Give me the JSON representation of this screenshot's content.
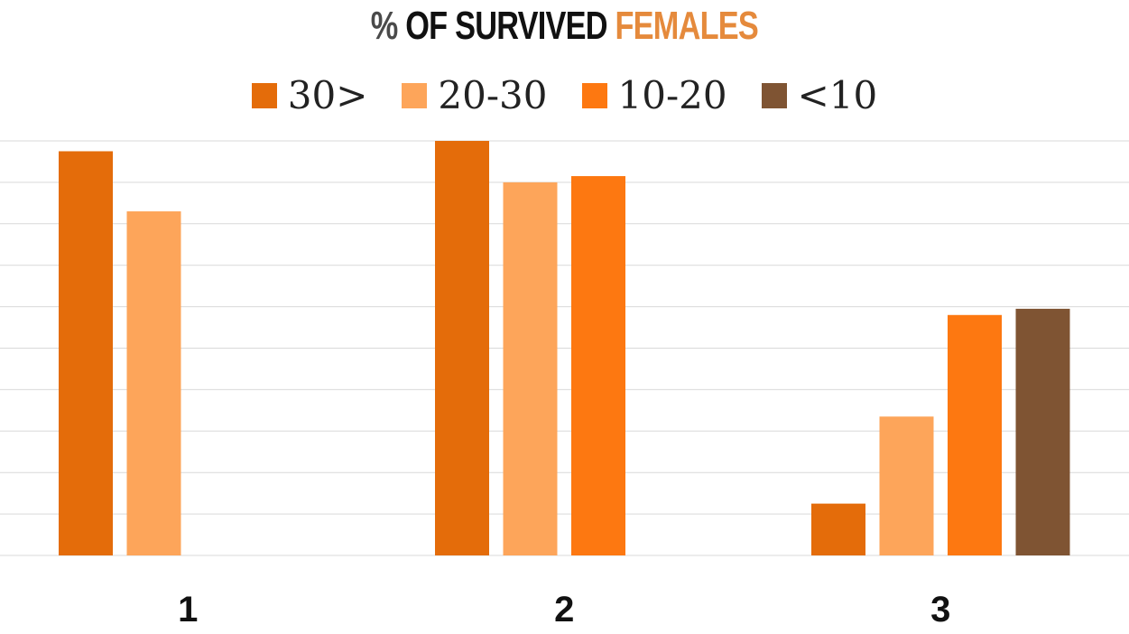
{
  "title": {
    "prefix": "%",
    "main": "OF SURVIVED",
    "accent": "FEMALES"
  },
  "legend": [
    {
      "label": "30>",
      "color": "#e46c0a"
    },
    {
      "label": "20-30",
      "color": "#fda55a"
    },
    {
      "label": "10-20",
      "color": "#fd7811"
    },
    {
      "label": "<10",
      "color": "#7f5433"
    }
  ],
  "chart_data": {
    "type": "bar",
    "title": "% OF SURVIVED FEMALES",
    "categories": [
      "1",
      "2",
      "3"
    ],
    "series": [
      {
        "name": "30>",
        "color": "#e46c0a",
        "values": [
          97.5,
          100,
          12.5
        ]
      },
      {
        "name": "20-30",
        "color": "#fda55a",
        "values": [
          83,
          90,
          33.5
        ]
      },
      {
        "name": "10-20",
        "color": "#fd7811",
        "values": [
          0,
          91.5,
          58
        ]
      },
      {
        "name": "<10",
        "color": "#7f5433",
        "values": [
          0,
          0,
          59.5
        ]
      }
    ],
    "ylim": [
      0,
      100
    ],
    "grid": true,
    "legend_position": "top"
  }
}
